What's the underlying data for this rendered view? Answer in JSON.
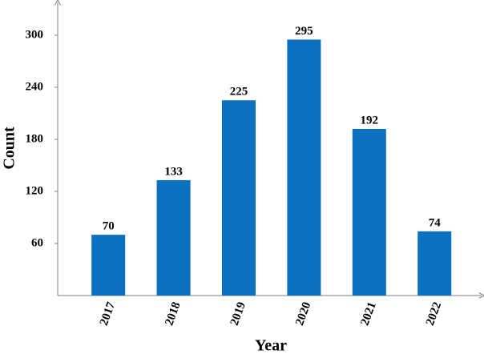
{
  "chart_data": {
    "type": "bar",
    "x_label": "Year",
    "y_label": "Count",
    "categories": [
      "2017",
      "2018",
      "2019",
      "2020",
      "2021",
      "2022"
    ],
    "values": [
      70,
      133,
      225,
      295,
      192,
      74
    ],
    "color": "#0a70c2",
    "ylim": [
      0,
      330
    ],
    "yticks": [
      60,
      120,
      180,
      240,
      300
    ],
    "grid": false
  }
}
